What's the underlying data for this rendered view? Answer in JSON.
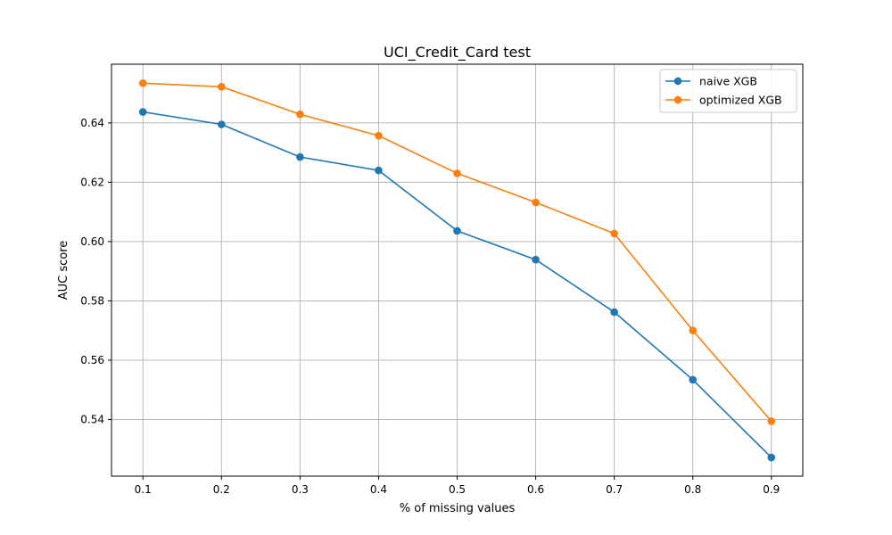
{
  "chart_data": {
    "type": "line",
    "title": "UCI_Credit_Card test",
    "xlabel": "% of missing values",
    "ylabel": "AUC score",
    "x": [
      0.1,
      0.2,
      0.3,
      0.4,
      0.5,
      0.6,
      0.7,
      0.8,
      0.9
    ],
    "x_ticks": [
      "0.1",
      "0.2",
      "0.3",
      "0.4",
      "0.5",
      "0.6",
      "0.7",
      "0.8",
      "0.9"
    ],
    "xlim": [
      0.06,
      0.94
    ],
    "y_ticks": [
      "0.54",
      "0.56",
      "0.58",
      "0.60",
      "0.62",
      "0.64"
    ],
    "y_tick_values": [
      0.54,
      0.56,
      0.58,
      0.6,
      0.62,
      0.64
    ],
    "ylim": [
      0.5209,
      0.6598
    ],
    "grid": true,
    "legend_position": "top-right",
    "series": [
      {
        "name": "naive XGB",
        "color": "#1f77b4",
        "values": [
          0.6437,
          0.6395,
          0.6285,
          0.624,
          0.6036,
          0.5939,
          0.5762,
          0.5534,
          0.5272
        ]
      },
      {
        "name": "optimized XGB",
        "color": "#ff7f0e",
        "values": [
          0.6534,
          0.6522,
          0.6429,
          0.6357,
          0.623,
          0.6132,
          0.6027,
          0.57,
          0.5394
        ]
      }
    ]
  }
}
